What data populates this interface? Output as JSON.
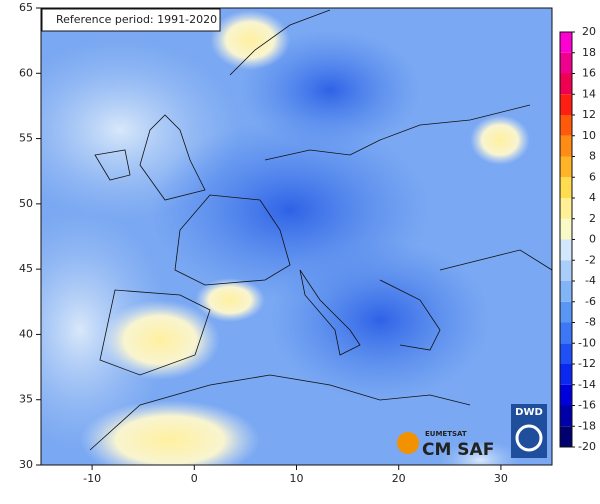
{
  "map": {
    "reference_label": "Reference period: 1991-2020",
    "lonlim": [
      -15,
      35
    ],
    "lon_ticks": [
      -10,
      0,
      10,
      20,
      30
    ],
    "latlim": [
      30,
      65
    ],
    "lat_ticks": [
      30,
      35,
      40,
      45,
      50,
      55,
      60,
      65
    ],
    "colorbar": {
      "lim": [
        -20,
        20
      ],
      "ticks": [
        -20,
        -18,
        -16,
        -14,
        -12,
        -10,
        -8,
        -6,
        -4,
        -2,
        0,
        2,
        4,
        6,
        8,
        10,
        12,
        14,
        16,
        18,
        20
      ],
      "colors": [
        "#00006e",
        "#0000a8",
        "#0000dc",
        "#0a28f0",
        "#1e50f5",
        "#3c78f5",
        "#5a96f5",
        "#82b4f8",
        "#aacdfa",
        "#d2e6fc",
        "#fafac8",
        "#fff096",
        "#ffdc50",
        "#ffb428",
        "#ff8c14",
        "#ff5a0a",
        "#ff1e14",
        "#f00050",
        "#f0008c",
        "#ff00d2"
      ]
    },
    "logos": {
      "eumetsat": "EUMETSAT",
      "cmsaf": "CM SAF",
      "dwd": "DWD"
    }
  }
}
